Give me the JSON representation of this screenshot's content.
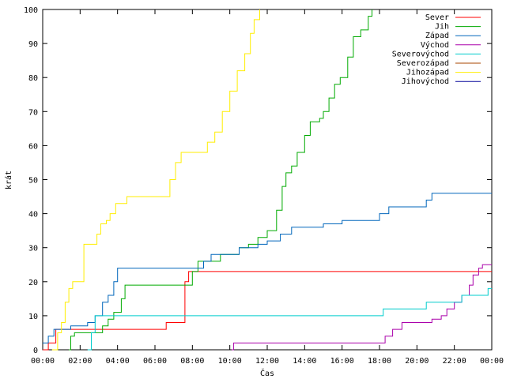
{
  "chart_data": {
    "type": "line",
    "xlabel": "Čas",
    "ylabel": "krát",
    "xlim": [
      0,
      24
    ],
    "ylim": [
      0,
      100
    ],
    "x_tick_labels": [
      "00:00",
      "02:00",
      "04:00",
      "06:00",
      "08:00",
      "10:00",
      "12:00",
      "14:00",
      "16:00",
      "18:00",
      "20:00",
      "22:00",
      "00:00"
    ],
    "x_tick_values": [
      0,
      2,
      4,
      6,
      8,
      10,
      12,
      14,
      16,
      18,
      20,
      22,
      24
    ],
    "y_tick_values": [
      0,
      10,
      20,
      30,
      40,
      50,
      60,
      70,
      80,
      90,
      100
    ],
    "y_tick_labels": [
      "0",
      "10",
      "20",
      "30",
      "40",
      "50",
      "60",
      "70",
      "80",
      "90",
      "100"
    ],
    "grid": false,
    "legend_position": "top-right",
    "series": [
      {
        "name": "Sever",
        "color": "#ff0000",
        "points": [
          [
            0,
            0
          ],
          [
            0.3,
            2
          ],
          [
            0.7,
            6
          ],
          [
            6.5,
            6
          ],
          [
            6.6,
            8
          ],
          [
            7.4,
            8
          ],
          [
            7.6,
            20
          ],
          [
            7.8,
            23
          ],
          [
            24,
            23
          ]
        ]
      },
      {
        "name": "Jih",
        "color": "#00aa00",
        "points": [
          [
            1.4,
            0
          ],
          [
            1.5,
            4
          ],
          [
            1.7,
            5
          ],
          [
            3.0,
            5
          ],
          [
            3.2,
            7
          ],
          [
            3.5,
            9
          ],
          [
            3.8,
            11
          ],
          [
            4.2,
            15
          ],
          [
            4.4,
            19
          ],
          [
            7.8,
            19
          ],
          [
            8.0,
            23
          ],
          [
            8.3,
            26
          ],
          [
            9.5,
            28
          ],
          [
            10.5,
            30
          ],
          [
            11.0,
            31
          ],
          [
            11.5,
            33
          ],
          [
            12.0,
            35
          ],
          [
            12.5,
            41
          ],
          [
            12.8,
            48
          ],
          [
            13.0,
            52
          ],
          [
            13.3,
            54
          ],
          [
            13.6,
            58
          ],
          [
            14.0,
            63
          ],
          [
            14.3,
            67
          ],
          [
            14.8,
            68
          ],
          [
            15.0,
            70
          ],
          [
            15.3,
            74
          ],
          [
            15.6,
            78
          ],
          [
            15.9,
            80
          ],
          [
            16.3,
            86
          ],
          [
            16.6,
            92
          ],
          [
            17.0,
            94
          ],
          [
            17.4,
            98
          ],
          [
            17.6,
            100
          ]
        ]
      },
      {
        "name": "Západ",
        "color": "#0066bb",
        "points": [
          [
            0,
            2
          ],
          [
            0.3,
            4
          ],
          [
            0.6,
            6
          ],
          [
            1.5,
            7
          ],
          [
            2.4,
            8
          ],
          [
            2.8,
            10
          ],
          [
            3.2,
            14
          ],
          [
            3.5,
            16
          ],
          [
            3.8,
            20
          ],
          [
            4.0,
            24
          ],
          [
            8.6,
            26
          ],
          [
            9.0,
            28
          ],
          [
            10.0,
            28
          ],
          [
            10.5,
            30
          ],
          [
            11.5,
            31
          ],
          [
            12.0,
            32
          ],
          [
            12.7,
            34
          ],
          [
            13.3,
            36
          ],
          [
            15.0,
            37
          ],
          [
            16.0,
            38
          ],
          [
            18.0,
            40
          ],
          [
            18.5,
            42
          ],
          [
            20.5,
            44
          ],
          [
            20.8,
            46
          ],
          [
            24,
            46
          ]
        ]
      },
      {
        "name": "Východ",
        "color": "#aa00aa",
        "points": [
          [
            10.1,
            0
          ],
          [
            10.2,
            2
          ],
          [
            18.0,
            2
          ],
          [
            18.3,
            4
          ],
          [
            18.7,
            6
          ],
          [
            19.2,
            8
          ],
          [
            20.8,
            9
          ],
          [
            21.3,
            10
          ],
          [
            21.6,
            12
          ],
          [
            22.0,
            14
          ],
          [
            22.4,
            16
          ],
          [
            22.8,
            19
          ],
          [
            23.0,
            22
          ],
          [
            23.3,
            24
          ],
          [
            23.5,
            25
          ],
          [
            24,
            25
          ]
        ]
      },
      {
        "name": "Severovýchod",
        "color": "#00cccc",
        "points": [
          [
            2.4,
            0
          ],
          [
            2.6,
            5
          ],
          [
            2.8,
            10
          ],
          [
            18.0,
            10
          ],
          [
            18.2,
            12
          ],
          [
            20.5,
            14
          ],
          [
            22.4,
            16
          ],
          [
            23.6,
            16
          ],
          [
            23.8,
            18
          ],
          [
            24,
            18
          ]
        ]
      },
      {
        "name": "Severozápad",
        "color": "#aa4400",
        "points": []
      },
      {
        "name": "Jihozápad",
        "color": "#ffee00",
        "points": [
          [
            0.5,
            0
          ],
          [
            0.8,
            5
          ],
          [
            1.0,
            8
          ],
          [
            1.2,
            14
          ],
          [
            1.4,
            18
          ],
          [
            1.6,
            20
          ],
          [
            2.2,
            31
          ],
          [
            2.7,
            31
          ],
          [
            2.9,
            34
          ],
          [
            3.1,
            37
          ],
          [
            3.4,
            38
          ],
          [
            3.6,
            40
          ],
          [
            3.9,
            43
          ],
          [
            4.0,
            43
          ],
          [
            4.5,
            45
          ],
          [
            6.6,
            45
          ],
          [
            6.8,
            50
          ],
          [
            7.1,
            55
          ],
          [
            7.4,
            58
          ],
          [
            8.4,
            58
          ],
          [
            8.8,
            61
          ],
          [
            9.2,
            64
          ],
          [
            9.6,
            70
          ],
          [
            10.0,
            76
          ],
          [
            10.4,
            82
          ],
          [
            10.8,
            87
          ],
          [
            11.1,
            93
          ],
          [
            11.3,
            97
          ],
          [
            11.6,
            100
          ]
        ]
      },
      {
        "name": "Jihovýchod",
        "color": "#000099",
        "points": []
      }
    ]
  }
}
